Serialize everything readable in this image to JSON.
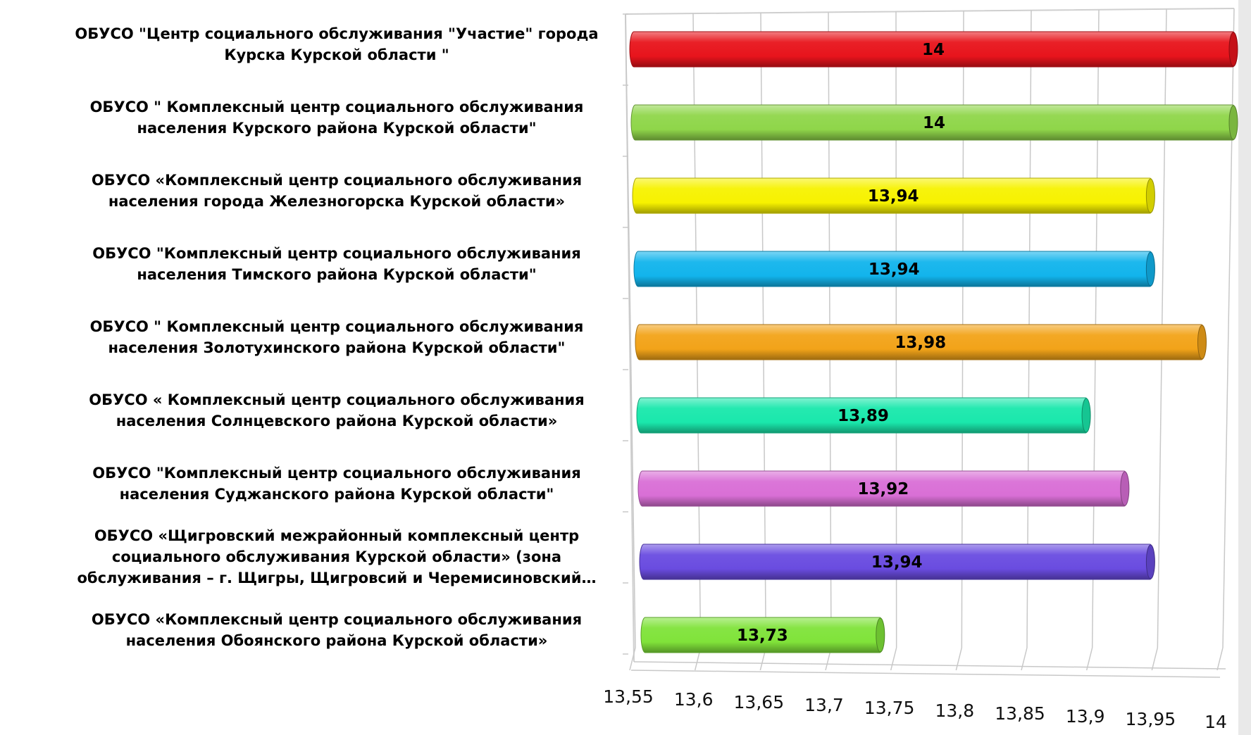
{
  "chart_data": {
    "type": "bar",
    "orientation": "horizontal",
    "title": "",
    "xlabel": "",
    "ylabel": "",
    "xlim": [
      13.55,
      14
    ],
    "grid": true,
    "legend": "none",
    "tick_values": [
      13.55,
      13.6,
      13.65,
      13.7,
      13.75,
      13.8,
      13.85,
      13.9,
      13.95,
      14
    ],
    "tick_labels": [
      "13,55",
      "13,6",
      "13,65",
      "13,7",
      "13,75",
      "13,8",
      "13,85",
      "13,9",
      "13,95",
      "14"
    ],
    "categories": [
      [
        "ОБУСО \"Центр социального обслуживания \"Участие\" города",
        "Курска Курской области \""
      ],
      [
        "ОБУСО \" Комплексный центр социального обслуживания",
        "населения  Курского района Курской области\""
      ],
      [
        "ОБУСО «Комплексный центр социального обслуживания",
        "населения города Железногорска Курской области»"
      ],
      [
        "ОБУСО \"Комплексный центр социального обслуживания",
        "населения  Тимского района Курской области\""
      ],
      [
        "ОБУСО \" Комплексный центр социального обслуживания",
        "населения  Золотухинского района Курской области\""
      ],
      [
        "ОБУСО « Комплексный центр социального обслуживания",
        "населения  Солнцевского района Курской области»"
      ],
      [
        "ОБУСО \"Комплексный центр социального обслуживания",
        "населения  Суджанского района Курской области\""
      ],
      [
        "ОБУСО «Щигровский межрайонный комплексный центр",
        "социального обслуживания Курской области» (зона",
        "обслуживания – г. Щигры, Щигровсий и Черемисиновский…"
      ],
      [
        "ОБУСО «Комплексный центр социального обслуживания",
        "населения  Обоянского района Курской области»"
      ]
    ],
    "values": [
      14,
      14,
      13.94,
      13.94,
      13.98,
      13.89,
      13.92,
      13.94,
      13.73
    ],
    "value_labels": [
      "14",
      "14",
      "13,94",
      "13,94",
      "13,98",
      "13,89",
      "13,92",
      "13,94",
      "13,73"
    ],
    "colors": [
      "#e8141c",
      "#8fd64a",
      "#f7f200",
      "#12b4ec",
      "#f2a319",
      "#1ae8ac",
      "#d96fd6",
      "#6a4ce0",
      "#80e33a"
    ]
  }
}
